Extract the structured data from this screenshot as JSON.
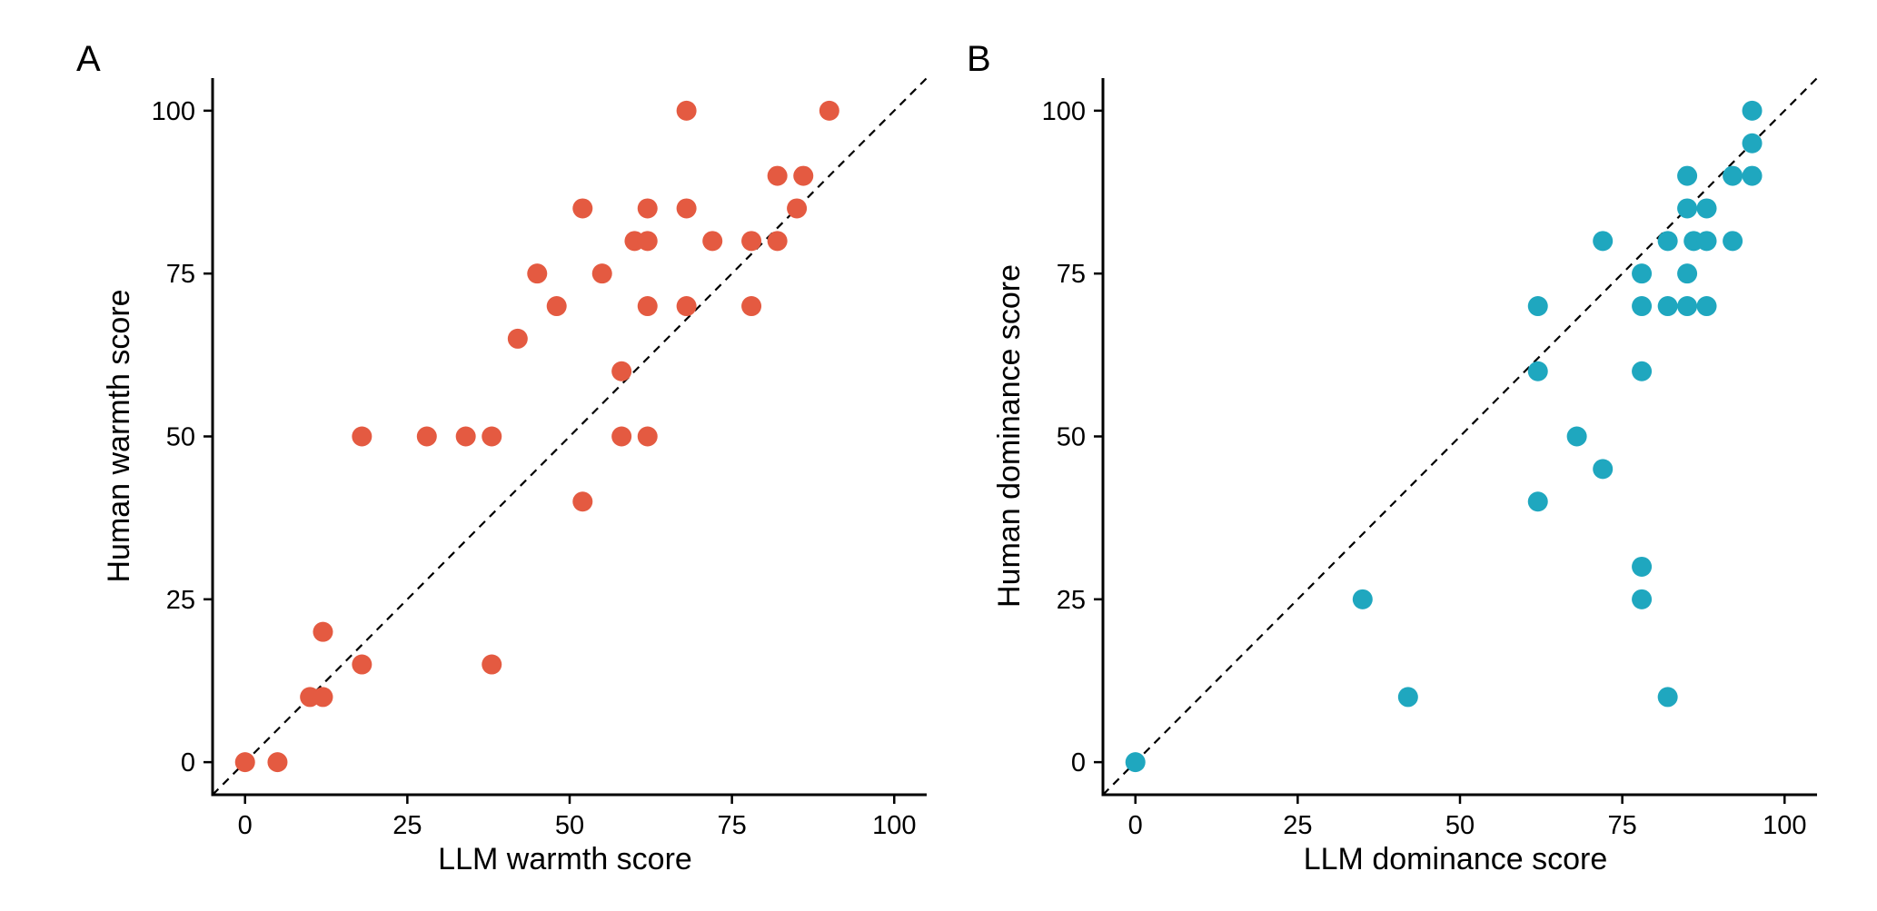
{
  "chart_data": [
    {
      "type": "scatter",
      "panel_label": "A",
      "xlabel": "LLM warmth score",
      "ylabel": "Human warmth score",
      "xlim": [
        -5,
        105
      ],
      "ylim": [
        -5,
        105
      ],
      "xticks": [
        0,
        25,
        50,
        75,
        100
      ],
      "yticks": [
        0,
        25,
        50,
        75,
        100
      ],
      "color": "#E45A41",
      "reference_line": "y = x (dashed)",
      "grid": false,
      "points": [
        [
          0,
          0
        ],
        [
          5,
          0
        ],
        [
          10,
          10
        ],
        [
          12,
          10
        ],
        [
          12,
          20
        ],
        [
          18,
          15
        ],
        [
          18,
          50
        ],
        [
          28,
          50
        ],
        [
          34,
          50
        ],
        [
          38,
          50
        ],
        [
          38,
          15
        ],
        [
          42,
          65
        ],
        [
          45,
          75
        ],
        [
          48,
          70
        ],
        [
          52,
          85
        ],
        [
          52,
          40
        ],
        [
          55,
          75
        ],
        [
          58,
          60
        ],
        [
          58,
          50
        ],
        [
          60,
          80
        ],
        [
          62,
          80
        ],
        [
          62,
          85
        ],
        [
          62,
          70
        ],
        [
          62,
          50
        ],
        [
          68,
          100
        ],
        [
          68,
          85
        ],
        [
          68,
          70
        ],
        [
          72,
          80
        ],
        [
          78,
          80
        ],
        [
          78,
          70
        ],
        [
          82,
          90
        ],
        [
          82,
          80
        ],
        [
          85,
          85
        ],
        [
          86,
          90
        ],
        [
          90,
          100
        ]
      ]
    },
    {
      "type": "scatter",
      "panel_label": "B",
      "xlabel": "LLM dominance score",
      "ylabel": "Human dominance score",
      "xlim": [
        -5,
        105
      ],
      "ylim": [
        -5,
        105
      ],
      "xticks": [
        0,
        25,
        50,
        75,
        100
      ],
      "yticks": [
        0,
        25,
        50,
        75,
        100
      ],
      "color": "#1FA7BF",
      "reference_line": "y = x (dashed)",
      "grid": false,
      "points": [
        [
          0,
          0
        ],
        [
          35,
          25
        ],
        [
          42,
          10
        ],
        [
          62,
          70
        ],
        [
          62,
          60
        ],
        [
          62,
          40
        ],
        [
          68,
          50
        ],
        [
          72,
          80
        ],
        [
          72,
          45
        ],
        [
          78,
          75
        ],
        [
          78,
          70
        ],
        [
          78,
          60
        ],
        [
          78,
          30
        ],
        [
          78,
          25
        ],
        [
          82,
          80
        ],
        [
          82,
          70
        ],
        [
          82,
          10
        ],
        [
          85,
          90
        ],
        [
          85,
          85
        ],
        [
          85,
          75
        ],
        [
          85,
          70
        ],
        [
          86,
          80
        ],
        [
          88,
          85
        ],
        [
          88,
          80
        ],
        [
          88,
          70
        ],
        [
          92,
          90
        ],
        [
          92,
          80
        ],
        [
          95,
          100
        ],
        [
          95,
          95
        ],
        [
          95,
          90
        ]
      ]
    }
  ]
}
